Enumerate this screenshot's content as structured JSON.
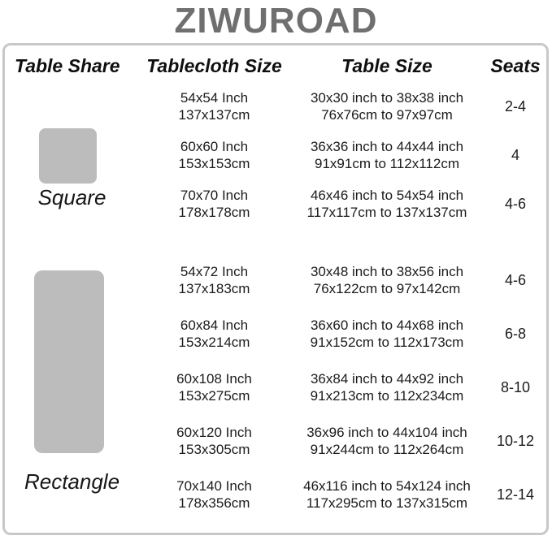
{
  "brand": "ZIWUROAD",
  "columns": {
    "shape": "Table Share",
    "tablecloth": "Tablecloth Size",
    "table": "Table Size",
    "seats": "Seats"
  },
  "groups": [
    {
      "shape_label": "Square",
      "shape_icon": "square-icon",
      "rows": [
        {
          "tablecloth": [
            "54x54 Inch",
            "137x137cm"
          ],
          "table": [
            "30x30 inch to 38x38 inch",
            "76x76cm to 97x97cm"
          ],
          "seats": "2-4"
        },
        {
          "tablecloth": [
            "60x60 Inch",
            "153x153cm"
          ],
          "table": [
            "36x36 inch to 44x44 inch",
            "91x91cm to 112x112cm"
          ],
          "seats": "4"
        },
        {
          "tablecloth": [
            "70x70 Inch",
            "178x178cm"
          ],
          "table": [
            "46x46 inch to 54x54 inch",
            "117x117cm to 137x137cm"
          ],
          "seats": "4-6"
        }
      ]
    },
    {
      "shape_label": "Rectangle",
      "shape_icon": "rectangle-icon",
      "rows": [
        {
          "tablecloth": [
            "54x72 Inch",
            "137x183cm"
          ],
          "table": [
            "30x48 inch to 38x56 inch",
            "76x122cm to 97x142cm"
          ],
          "seats": "4-6"
        },
        {
          "tablecloth": [
            "60x84 Inch",
            "153x214cm"
          ],
          "table": [
            "36x60 inch to 44x68 inch",
            "91x152cm to 112x173cm"
          ],
          "seats": "6-8"
        },
        {
          "tablecloth": [
            "60x108 Inch",
            "153x275cm"
          ],
          "table": [
            "36x84 inch to 44x92 inch",
            "91x213cm to 112x234cm"
          ],
          "seats": "8-10"
        },
        {
          "tablecloth": [
            "60x120 Inch",
            "153x305cm"
          ],
          "table": [
            "36x96 inch to 44x104 inch",
            "91x244cm to 112x264cm"
          ],
          "seats": "10-12"
        },
        {
          "tablecloth": [
            "70x140 Inch",
            "178x356cm"
          ],
          "table": [
            "46x116 inch to 54x124 inch",
            "117x295cm to 137x315cm"
          ],
          "seats": "12-14"
        }
      ]
    }
  ],
  "colors": {
    "brand_text": "#6f6f6f",
    "border": "#c8c8c8",
    "icon_fill": "#bcbcbc",
    "body_text": "#1b1b1b"
  }
}
